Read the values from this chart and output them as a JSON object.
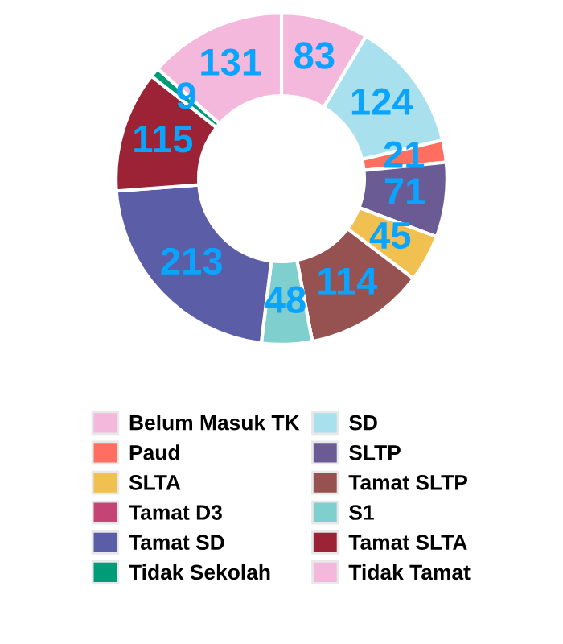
{
  "chart_data": {
    "type": "donut",
    "categories": [
      "Belum Masuk TK",
      "SD",
      "Paud",
      "SLTP",
      "SLTA",
      "Tamat SLTP",
      "Tamat D3",
      "S1",
      "Tamat SD",
      "Tamat SLTA",
      "Tidak Sekolah",
      "Tidak Tamat"
    ],
    "values": [
      83,
      124,
      21,
      71,
      45,
      114,
      null,
      48,
      213,
      115,
      9,
      131
    ],
    "colors": [
      "#f4b8dc",
      "#a8e0ee",
      "#ff6f61",
      "#6b5b95",
      "#f0c050",
      "#955251",
      "#c44476",
      "#80cfcf",
      "#5b5ea6",
      "#9b2335",
      "#009b77",
      "#f4b8dc"
    ],
    "value_labels": [
      "83",
      "124",
      "21",
      "71",
      "45",
      "114",
      null,
      "48",
      "213",
      "115",
      "9",
      "131"
    ],
    "legend": "bottom"
  }
}
